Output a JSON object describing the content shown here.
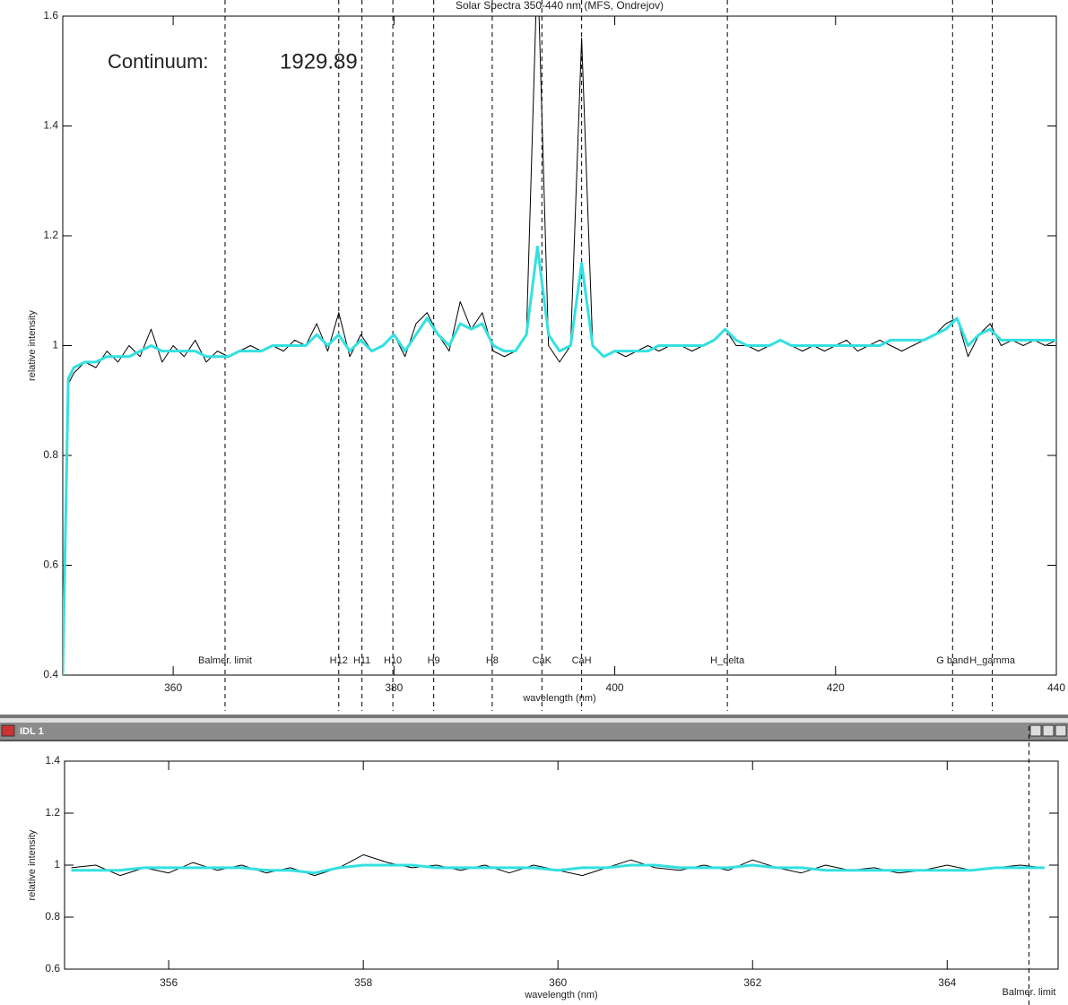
{
  "chart_data": [
    {
      "type": "line",
      "title": "Solar Spectra 350-440 nm (MFS, Ondrejov)",
      "x_label": "wavelength (nm)",
      "y_label": "relative intensity",
      "xlim": [
        350,
        440
      ],
      "ylim": [
        0.4,
        1.6
      ],
      "xticks": [
        360,
        380,
        400,
        420,
        440
      ],
      "yticks": [
        0.4,
        0.6,
        0.8,
        1.0,
        1.2,
        1.4,
        1.6
      ],
      "annotations": [
        {
          "text": "Continuum:"
        },
        {
          "text": "1929.89"
        }
      ],
      "markers": [
        {
          "x": 364.7,
          "label": "Balmer. limit"
        },
        {
          "x": 375.0,
          "label": "H12"
        },
        {
          "x": 377.1,
          "label": "H11"
        },
        {
          "x": 379.9,
          "label": "H10"
        },
        {
          "x": 383.6,
          "label": "H9"
        },
        {
          "x": 388.9,
          "label": "H8"
        },
        {
          "x": 393.4,
          "label": "CaK"
        },
        {
          "x": 397.0,
          "label": "CaH"
        },
        {
          "x": 410.2,
          "label": "H_delta"
        },
        {
          "x": 430.6,
          "label": "G band"
        },
        {
          "x": 434.2,
          "label": "H_gamma"
        }
      ],
      "x": [
        350,
        350.5,
        351,
        352,
        353,
        354,
        355,
        356,
        357,
        358,
        359,
        360,
        361,
        362,
        363,
        364,
        365,
        366,
        367,
        368,
        369,
        370,
        371,
        372,
        373,
        374,
        375,
        376,
        377,
        378,
        379,
        380,
        381,
        382,
        383,
        384,
        385,
        386,
        387,
        388,
        389,
        390,
        391,
        392,
        393,
        394,
        395,
        396,
        397,
        398,
        399,
        400,
        401,
        402,
        403,
        404,
        405,
        406,
        407,
        408,
        409,
        410,
        411,
        412,
        413,
        414,
        415,
        416,
        417,
        418,
        419,
        420,
        421,
        422,
        423,
        424,
        425,
        426,
        427,
        428,
        429,
        430,
        431,
        432,
        433,
        434,
        435,
        436,
        437,
        438,
        439,
        440
      ],
      "series": [
        {
          "color": "#000000",
          "width": 1,
          "values": [
            0.4,
            0.93,
            0.95,
            0.97,
            0.96,
            0.99,
            0.97,
            1.0,
            0.98,
            1.03,
            0.97,
            1.0,
            0.98,
            1.01,
            0.97,
            0.99,
            0.98,
            0.99,
            1.0,
            0.99,
            1.0,
            0.99,
            1.01,
            1.0,
            1.04,
            0.99,
            1.06,
            0.98,
            1.02,
            0.99,
            1.0,
            1.02,
            0.98,
            1.04,
            1.06,
            1.02,
            0.99,
            1.08,
            1.03,
            1.06,
            0.99,
            0.98,
            0.99,
            1.02,
            1.7,
            1.0,
            0.97,
            1.0,
            1.56,
            1.0,
            0.98,
            0.99,
            0.98,
            0.99,
            1.0,
            0.99,
            1.0,
            1.0,
            0.99,
            1.0,
            1.01,
            1.03,
            1.0,
            1.0,
            0.99,
            1.0,
            1.01,
            1.0,
            0.99,
            1.0,
            0.99,
            1.0,
            1.01,
            0.99,
            1.0,
            1.01,
            1.0,
            0.99,
            1.0,
            1.01,
            1.02,
            1.04,
            1.05,
            0.98,
            1.02,
            1.04,
            1.0,
            1.01,
            1.0,
            1.01,
            1.0,
            1.01
          ]
        },
        {
          "color": "#33e0e0",
          "width": 3,
          "values": [
            0.4,
            0.94,
            0.96,
            0.97,
            0.97,
            0.98,
            0.98,
            0.98,
            0.99,
            1.0,
            0.99,
            0.99,
            0.99,
            0.99,
            0.98,
            0.98,
            0.98,
            0.99,
            0.99,
            0.99,
            1.0,
            1.0,
            1.0,
            1.0,
            1.02,
            1.0,
            1.02,
            0.99,
            1.01,
            0.99,
            1.0,
            1.02,
            0.99,
            1.02,
            1.05,
            1.02,
            1.0,
            1.04,
            1.03,
            1.04,
            1.0,
            0.99,
            0.99,
            1.02,
            1.18,
            1.02,
            0.99,
            1.0,
            1.15,
            1.0,
            0.98,
            0.99,
            0.99,
            0.99,
            0.99,
            1.0,
            1.0,
            1.0,
            1.0,
            1.0,
            1.01,
            1.03,
            1.01,
            1.0,
            1.0,
            1.0,
            1.01,
            1.0,
            1.0,
            1.0,
            1.0,
            1.0,
            1.0,
            1.0,
            1.0,
            1.0,
            1.01,
            1.01,
            1.01,
            1.01,
            1.02,
            1.03,
            1.05,
            1.0,
            1.02,
            1.03,
            1.01,
            1.01,
            1.01,
            1.01,
            1.01,
            1.01
          ]
        }
      ]
    },
    {
      "type": "line",
      "x_label": "wavelength (nm)",
      "y_label": "relative intensity",
      "xlim": [
        354.93,
        365.14
      ],
      "ylim": [
        0.6,
        1.4
      ],
      "xticks": [
        356,
        358,
        360,
        362,
        364
      ],
      "yticks": [
        0.6,
        0.8,
        1.0,
        1.2,
        1.4
      ],
      "markers": [
        {
          "x": 364.84,
          "label": "Balmer. limit"
        }
      ],
      "x": [
        355,
        355.25,
        355.5,
        355.75,
        356,
        356.25,
        356.5,
        356.75,
        357,
        357.25,
        357.5,
        357.75,
        358,
        358.25,
        358.5,
        358.75,
        359,
        359.25,
        359.5,
        359.75,
        360,
        360.25,
        360.5,
        360.75,
        361,
        361.25,
        361.5,
        361.75,
        362,
        362.25,
        362.5,
        362.75,
        363,
        363.25,
        363.5,
        363.75,
        364,
        364.25,
        364.5,
        364.75,
        365
      ],
      "series": [
        {
          "color": "#000000",
          "width": 1,
          "values": [
            0.99,
            1.0,
            0.96,
            0.99,
            0.97,
            1.01,
            0.98,
            1.0,
            0.97,
            0.99,
            0.96,
            0.99,
            1.04,
            1.01,
            0.99,
            1.0,
            0.98,
            1.0,
            0.97,
            1.0,
            0.98,
            0.96,
            0.99,
            1.02,
            0.99,
            0.98,
            1.0,
            0.98,
            1.02,
            0.99,
            0.97,
            1.0,
            0.98,
            0.99,
            0.97,
            0.98,
            1.0,
            0.98,
            0.99,
            1.0,
            0.99
          ]
        },
        {
          "color": "#33e0e0",
          "width": 3,
          "values": [
            0.98,
            0.98,
            0.98,
            0.99,
            0.99,
            0.99,
            0.99,
            0.99,
            0.98,
            0.98,
            0.97,
            0.99,
            1.0,
            1.0,
            1.0,
            0.99,
            0.99,
            0.99,
            0.99,
            0.99,
            0.98,
            0.99,
            0.99,
            1.0,
            1.0,
            0.99,
            0.99,
            0.99,
            1.0,
            0.99,
            0.99,
            0.98,
            0.98,
            0.98,
            0.98,
            0.98,
            0.98,
            0.98,
            0.99,
            0.99,
            0.99
          ]
        }
      ]
    }
  ],
  "window": {
    "title": "IDL 1"
  }
}
